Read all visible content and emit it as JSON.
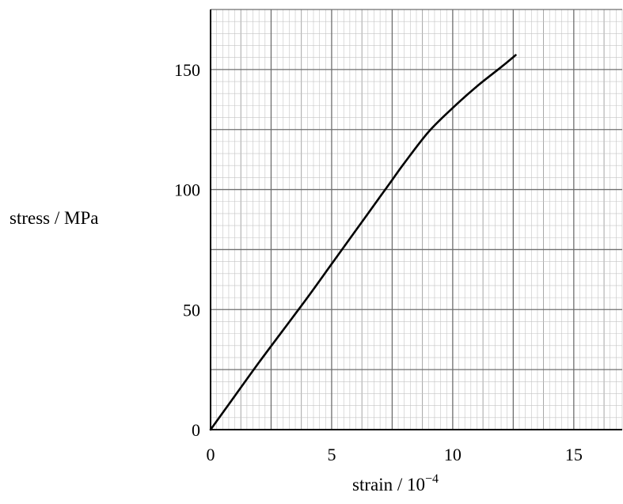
{
  "chart_data": {
    "type": "line",
    "title": "",
    "xlabel_base": "strain / 10",
    "xlabel_exp": "−4",
    "ylabel": "stress / MPa",
    "xlim": [
      0,
      17
    ],
    "ylim": [
      0,
      175
    ],
    "x_ticks": [
      "0",
      "5",
      "10",
      "15"
    ],
    "y_ticks": [
      "0",
      "50",
      "100",
      "150"
    ],
    "x_tick_values": [
      0,
      5,
      10,
      15
    ],
    "y_tick_values": [
      0,
      50,
      100,
      150
    ],
    "grid": true,
    "series": [
      {
        "x": [
          0,
          1,
          2,
          3,
          4,
          5,
          6,
          7,
          7.5,
          8,
          9,
          10,
          11,
          12,
          12.6
        ],
        "y": [
          0,
          14,
          28,
          41.5,
          55,
          69,
          83,
          97,
          104,
          111,
          124,
          134,
          143,
          151,
          156
        ]
      }
    ]
  }
}
